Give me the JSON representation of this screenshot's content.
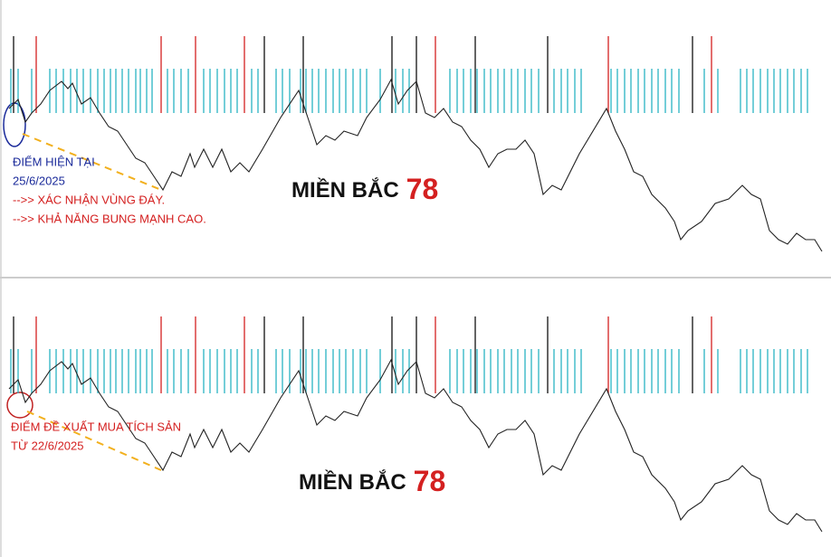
{
  "chart_data": [
    {
      "type": "line",
      "title": "MIỀN BẮC",
      "title_number": "78",
      "title_number_color": "#d42020",
      "line_color": "#222222",
      "xlim": [
        0,
        918
      ],
      "ylim": [
        0,
        300
      ],
      "x": [
        10,
        20,
        28,
        35,
        45,
        55,
        68,
        75,
        80,
        90,
        100,
        110,
        120,
        130,
        140,
        150,
        160,
        170,
        180,
        190,
        200,
        210,
        215,
        225,
        235,
        245,
        255,
        265,
        275,
        290,
        310,
        330,
        340,
        350,
        360,
        370,
        380,
        395,
        405,
        420,
        432,
        440,
        450,
        460,
        470,
        480,
        490,
        500,
        510,
        520,
        530,
        540,
        550,
        560,
        570,
        580,
        590,
        600,
        610,
        620,
        640,
        670,
        680,
        690,
        700,
        710,
        720,
        735,
        745,
        752,
        760,
        775,
        790,
        805,
        820,
        830,
        840,
        850,
        860,
        870,
        880,
        890,
        900,
        908
      ],
      "values": [
        180,
        190,
        165,
        175,
        185,
        200,
        210,
        202,
        208,
        185,
        192,
        175,
        160,
        155,
        140,
        125,
        120,
        105,
        90,
        110,
        105,
        130,
        115,
        135,
        115,
        135,
        110,
        120,
        110,
        135,
        170,
        200,
        170,
        140,
        150,
        145,
        155,
        150,
        170,
        190,
        212,
        185,
        200,
        210,
        175,
        170,
        180,
        165,
        160,
        145,
        135,
        115,
        130,
        135,
        135,
        145,
        130,
        85,
        95,
        90,
        130,
        180,
        155,
        135,
        110,
        105,
        85,
        70,
        55,
        35,
        45,
        55,
        75,
        80,
        95,
        85,
        80,
        45,
        35,
        30,
        42,
        35,
        35,
        22
      ],
      "signals": [
        {
          "color": "#2ab3c4",
          "x": [
            12,
            20,
            35,
            55,
            62,
            70,
            78,
            85,
            92,
            100,
            108,
            115,
            122,
            128,
            135,
            142,
            150,
            155,
            162,
            168,
            185,
            192,
            200,
            208,
            225,
            232,
            240,
            248,
            255,
            262,
            278,
            285,
            305,
            312,
            320,
            332,
            338,
            345,
            352,
            360,
            368,
            375,
            382,
            390,
            398,
            405,
            420,
            437,
            445,
            452,
            497,
            505,
            512,
            520,
            527,
            535,
            542,
            550,
            557,
            565,
            572,
            580,
            587,
            595,
            612,
            620,
            627,
            635,
            642,
            675,
            682,
            690,
            697,
            705,
            712,
            720,
            727,
            735,
            742,
            750,
            778,
            793,
            818,
            825,
            832,
            840,
            848,
            855,
            862,
            870,
            877,
            885,
            892
          ]
        },
        {
          "color": "#111111",
          "x": [
            15,
            292,
            335,
            433,
            460,
            525,
            605,
            765
          ]
        },
        {
          "color": "#d42020",
          "x": [
            40,
            178,
            216,
            270,
            481,
            672,
            786
          ]
        }
      ],
      "annotations": [
        {
          "text": "ĐIỂM HIỆN TẠI",
          "color": "#1a2a9a"
        },
        {
          "text": "25/6/2025",
          "color": "#1a2a9a"
        },
        {
          "text": "-->> XÁC NHẬN VÙNG ĐÁY.",
          "color": "#d42020"
        },
        {
          "text": "-->> KHẢ NĂNG BUNG MẠNH CAO.",
          "color": "#d42020"
        }
      ]
    },
    {
      "type": "line",
      "title": "MIỀN BẮC",
      "title_number": "78",
      "title_number_color": "#d42020",
      "line_color": "#222222",
      "xlim": [
        0,
        918
      ],
      "ylim": [
        0,
        300
      ],
      "x": [
        10,
        20,
        28,
        35,
        45,
        55,
        68,
        75,
        80,
        90,
        100,
        110,
        120,
        130,
        140,
        150,
        160,
        170,
        180,
        190,
        200,
        210,
        215,
        225,
        235,
        245,
        255,
        265,
        275,
        290,
        310,
        330,
        340,
        350,
        360,
        370,
        380,
        395,
        405,
        420,
        432,
        440,
        450,
        460,
        470,
        480,
        490,
        500,
        510,
        520,
        530,
        540,
        550,
        560,
        570,
        580,
        590,
        600,
        610,
        620,
        640,
        670,
        680,
        690,
        700,
        710,
        720,
        735,
        745,
        752,
        760,
        775,
        790,
        805,
        820,
        830,
        840,
        850,
        860,
        870,
        880,
        890,
        900,
        908
      ],
      "values": [
        180,
        190,
        165,
        175,
        185,
        200,
        210,
        202,
        208,
        185,
        192,
        175,
        160,
        155,
        140,
        125,
        120,
        105,
        90,
        110,
        105,
        130,
        115,
        135,
        115,
        135,
        110,
        120,
        110,
        135,
        170,
        200,
        170,
        140,
        150,
        145,
        155,
        150,
        170,
        190,
        212,
        185,
        200,
        210,
        175,
        170,
        180,
        165,
        160,
        145,
        135,
        115,
        130,
        135,
        135,
        145,
        130,
        85,
        95,
        90,
        130,
        180,
        155,
        135,
        110,
        105,
        85,
        70,
        55,
        35,
        45,
        55,
        75,
        80,
        95,
        85,
        80,
        45,
        35,
        30,
        42,
        35,
        35,
        22
      ],
      "signals": [
        {
          "color": "#2ab3c4",
          "x": [
            12,
            20,
            35,
            55,
            62,
            70,
            78,
            85,
            92,
            100,
            108,
            115,
            122,
            128,
            135,
            142,
            150,
            155,
            162,
            168,
            185,
            192,
            200,
            208,
            225,
            232,
            240,
            248,
            255,
            262,
            278,
            285,
            305,
            312,
            320,
            332,
            338,
            345,
            352,
            360,
            368,
            375,
            382,
            390,
            398,
            405,
            420,
            437,
            445,
            452,
            497,
            505,
            512,
            520,
            527,
            535,
            542,
            550,
            557,
            565,
            572,
            580,
            587,
            595,
            612,
            620,
            627,
            635,
            642,
            675,
            682,
            690,
            697,
            705,
            712,
            720,
            727,
            735,
            742,
            750,
            778,
            793,
            818,
            825,
            832,
            840,
            848,
            855,
            862,
            870,
            877,
            885,
            892
          ]
        },
        {
          "color": "#111111",
          "x": [
            15,
            292,
            335,
            433,
            460,
            525,
            605,
            765
          ]
        },
        {
          "color": "#d42020",
          "x": [
            40,
            178,
            216,
            270,
            481,
            672,
            786
          ]
        }
      ],
      "annotations": [
        {
          "text": "ĐIỂM ĐỀ XUẤT MUA TÍCH SẢN",
          "color": "#d42020"
        },
        {
          "text": "TỪ 22/6/2025",
          "color": "#d42020"
        }
      ]
    }
  ]
}
